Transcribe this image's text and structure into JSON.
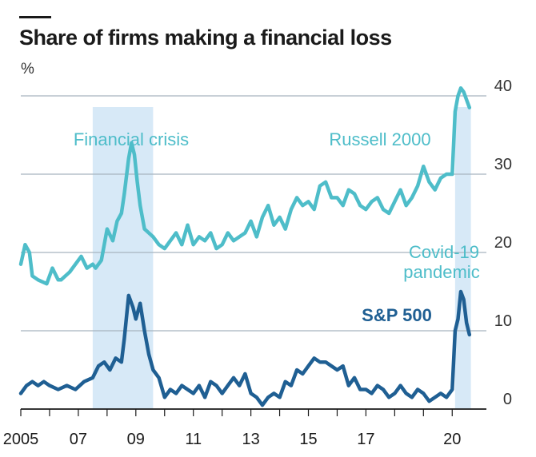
{
  "title": "Share of firms making a financial loss",
  "unit": "%",
  "colors": {
    "russell": "#4ebdc9",
    "sp500": "#1f5f93",
    "shade": "#d7e9f7",
    "grid": "#a7b5bf"
  },
  "annotations": {
    "financial_crisis": "Financial crisis",
    "covid_line1": "Covid-19",
    "covid_line2": "pandemic",
    "russell_label": "Russell 2000",
    "sp_label": "S&P 500"
  },
  "chart_data": {
    "type": "line",
    "title": "Share of firms making a financial loss",
    "ylabel": "%",
    "ylim": [
      0,
      40
    ],
    "yticks": [
      0,
      10,
      20,
      30,
      40
    ],
    "xlim": [
      2005,
      2021.3
    ],
    "xticks": [
      2005,
      2007,
      2009,
      2011,
      2013,
      2015,
      2017,
      2020
    ],
    "xtick_labels": [
      "2005",
      "07",
      "09",
      "11",
      "13",
      "15",
      "17",
      "20"
    ],
    "y_axis_position": "right",
    "grid": true,
    "shaded_periods": [
      {
        "label": "Financial crisis",
        "start": 2007.5,
        "end": 2009.6
      },
      {
        "label": "Covid-19 pandemic",
        "start": 2020.1,
        "end": 2020.65
      }
    ],
    "series": [
      {
        "name": "Russell 2000",
        "x": [
          2005.0,
          2005.15,
          2005.3,
          2005.4,
          2005.6,
          2005.9,
          2006.1,
          2006.3,
          2006.4,
          2006.7,
          2006.9,
          2007.1,
          2007.3,
          2007.5,
          2007.6,
          2007.8,
          2008.0,
          2008.2,
          2008.35,
          2008.5,
          2008.6,
          2008.75,
          2008.85,
          2008.95,
          2009.05,
          2009.15,
          2009.3,
          2009.45,
          2009.6,
          2009.8,
          2010.0,
          2010.2,
          2010.4,
          2010.6,
          2010.8,
          2011.0,
          2011.2,
          2011.4,
          2011.6,
          2011.8,
          2012.0,
          2012.2,
          2012.4,
          2012.6,
          2012.8,
          2013.0,
          2013.2,
          2013.4,
          2013.6,
          2013.8,
          2014.0,
          2014.2,
          2014.4,
          2014.6,
          2014.8,
          2015.0,
          2015.2,
          2015.4,
          2015.6,
          2015.8,
          2016.0,
          2016.2,
          2016.4,
          2016.6,
          2016.8,
          2017.0,
          2017.2,
          2017.4,
          2017.6,
          2017.8,
          2018.0,
          2018.2,
          2018.4,
          2018.6,
          2018.8,
          2019.0,
          2019.2,
          2019.4,
          2019.6,
          2019.8,
          2020.0,
          2020.1,
          2020.2,
          2020.3,
          2020.4,
          2020.5,
          2020.6
        ],
        "values": [
          18.5,
          21.0,
          20.0,
          17.0,
          16.5,
          16.0,
          18.0,
          16.5,
          16.5,
          17.5,
          18.5,
          19.5,
          18.0,
          18.5,
          18.0,
          19.0,
          23.0,
          21.5,
          24.0,
          25.0,
          27.5,
          32.0,
          34.0,
          32.5,
          29.0,
          26.0,
          23.0,
          22.5,
          22.0,
          21.0,
          20.5,
          21.5,
          22.5,
          21.0,
          23.5,
          21.0,
          22.0,
          21.5,
          22.5,
          20.5,
          21.0,
          22.5,
          21.5,
          22.0,
          22.5,
          24.0,
          22.0,
          24.5,
          26.0,
          23.5,
          24.5,
          23.0,
          25.5,
          27.0,
          26.0,
          26.5,
          25.5,
          28.5,
          29.0,
          27.0,
          27.0,
          26.0,
          28.0,
          27.5,
          26.0,
          25.5,
          26.5,
          27.0,
          25.5,
          25.0,
          26.5,
          28.0,
          26.0,
          27.0,
          28.5,
          31.0,
          29.0,
          28.0,
          29.5,
          30.0,
          30.0,
          38.0,
          40.0,
          41.0,
          40.5,
          39.5,
          38.5
        ]
      },
      {
        "name": "S&P 500",
        "x": [
          2005.0,
          2005.2,
          2005.4,
          2005.6,
          2005.8,
          2006.0,
          2006.3,
          2006.6,
          2006.9,
          2007.2,
          2007.5,
          2007.7,
          2007.9,
          2008.1,
          2008.3,
          2008.5,
          2008.6,
          2008.75,
          2008.9,
          2009.0,
          2009.15,
          2009.3,
          2009.45,
          2009.6,
          2009.8,
          2010.0,
          2010.2,
          2010.4,
          2010.6,
          2010.8,
          2011.0,
          2011.2,
          2011.4,
          2011.6,
          2011.8,
          2012.0,
          2012.2,
          2012.4,
          2012.6,
          2012.8,
          2013.0,
          2013.2,
          2013.4,
          2013.6,
          2013.8,
          2014.0,
          2014.2,
          2014.4,
          2014.6,
          2014.8,
          2015.0,
          2015.2,
          2015.4,
          2015.6,
          2015.8,
          2016.0,
          2016.2,
          2016.4,
          2016.6,
          2016.8,
          2017.0,
          2017.2,
          2017.4,
          2017.6,
          2017.8,
          2018.0,
          2018.2,
          2018.4,
          2018.6,
          2018.8,
          2019.0,
          2019.2,
          2019.4,
          2019.6,
          2019.8,
          2020.0,
          2020.1,
          2020.2,
          2020.3,
          2020.4,
          2020.5,
          2020.6
        ],
        "values": [
          2.0,
          3.0,
          3.5,
          3.0,
          3.5,
          3.0,
          2.5,
          3.0,
          2.5,
          3.5,
          4.0,
          5.5,
          6.0,
          5.0,
          6.5,
          6.0,
          9.0,
          14.5,
          13.0,
          11.5,
          13.5,
          10.0,
          7.0,
          5.0,
          4.0,
          1.5,
          2.5,
          2.0,
          3.0,
          2.5,
          2.0,
          3.0,
          1.5,
          3.5,
          3.0,
          2.0,
          3.0,
          4.0,
          3.0,
          4.5,
          2.0,
          1.5,
          0.5,
          1.5,
          2.0,
          1.5,
          3.5,
          3.0,
          5.0,
          4.5,
          5.5,
          6.5,
          6.0,
          6.0,
          5.5,
          5.0,
          5.5,
          3.0,
          4.0,
          2.5,
          2.5,
          2.0,
          3.0,
          2.5,
          1.5,
          2.0,
          3.0,
          2.0,
          1.5,
          2.5,
          2.0,
          1.0,
          1.5,
          2.0,
          1.5,
          2.5,
          10.0,
          11.5,
          15.0,
          14.0,
          11.0,
          9.5
        ]
      }
    ]
  }
}
